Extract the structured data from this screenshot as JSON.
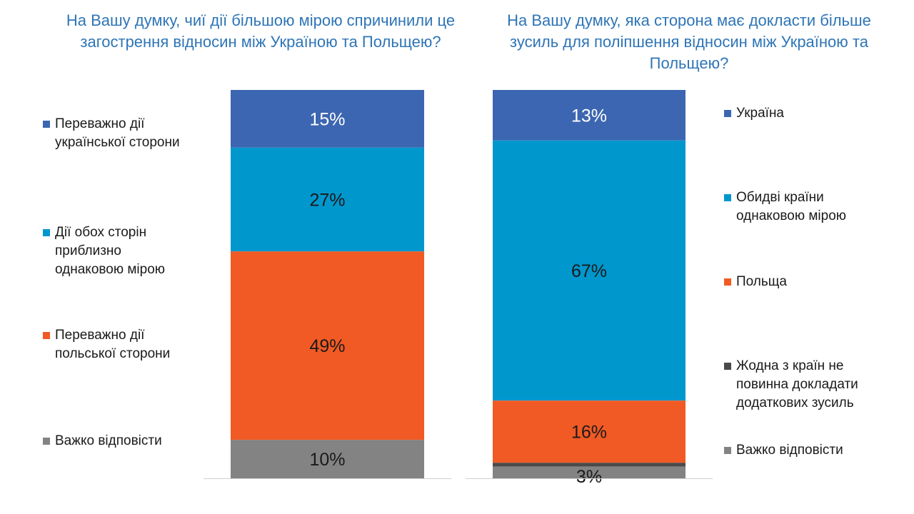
{
  "chart_data": [
    {
      "type": "bar",
      "stacked": true,
      "title": "На Вашу думку, чиї дії більшою мірою спричинили це загострення відносин між Україною та Польщею?",
      "categories": [
        ""
      ],
      "legend_position": "left",
      "series": [
        {
          "name": "Переважно дії української сторони",
          "values": [
            15
          ],
          "label": "15%",
          "color": "#3c66b1"
        },
        {
          "name": "Дії обох сторін приблизно однаковою мірою",
          "values": [
            27
          ],
          "label": "27%",
          "color": "#0097cd"
        },
        {
          "name": "Переважно дії польської сторони",
          "values": [
            49
          ],
          "label": "49%",
          "color": "#f15a24"
        },
        {
          "name": "Важко відповісти",
          "values": [
            10
          ],
          "label": "10%",
          "color": "#838383"
        }
      ]
    },
    {
      "type": "bar",
      "stacked": true,
      "title": "На Вашу думку, яка сторона має докласти більше зусиль для поліпшення відносин між Україною та Польщею?",
      "categories": [
        ""
      ],
      "legend_position": "right",
      "series": [
        {
          "name": "Україна",
          "values": [
            13
          ],
          "label": "13%",
          "color": "#3c66b1"
        },
        {
          "name": "Обидві країни однаковою мірою",
          "values": [
            67
          ],
          "label": "67%",
          "color": "#0097cd"
        },
        {
          "name": "Польща",
          "values": [
            16
          ],
          "label": "16%",
          "color": "#f15a24"
        },
        {
          "name": "Жодна з країн не повинна докладати додаткових зусиль",
          "values": [
            1
          ],
          "label": "",
          "color": "#4a4a4a"
        },
        {
          "name": "Важко відповісти",
          "values": [
            3
          ],
          "label": "3%",
          "color": "#838383"
        }
      ]
    }
  ]
}
